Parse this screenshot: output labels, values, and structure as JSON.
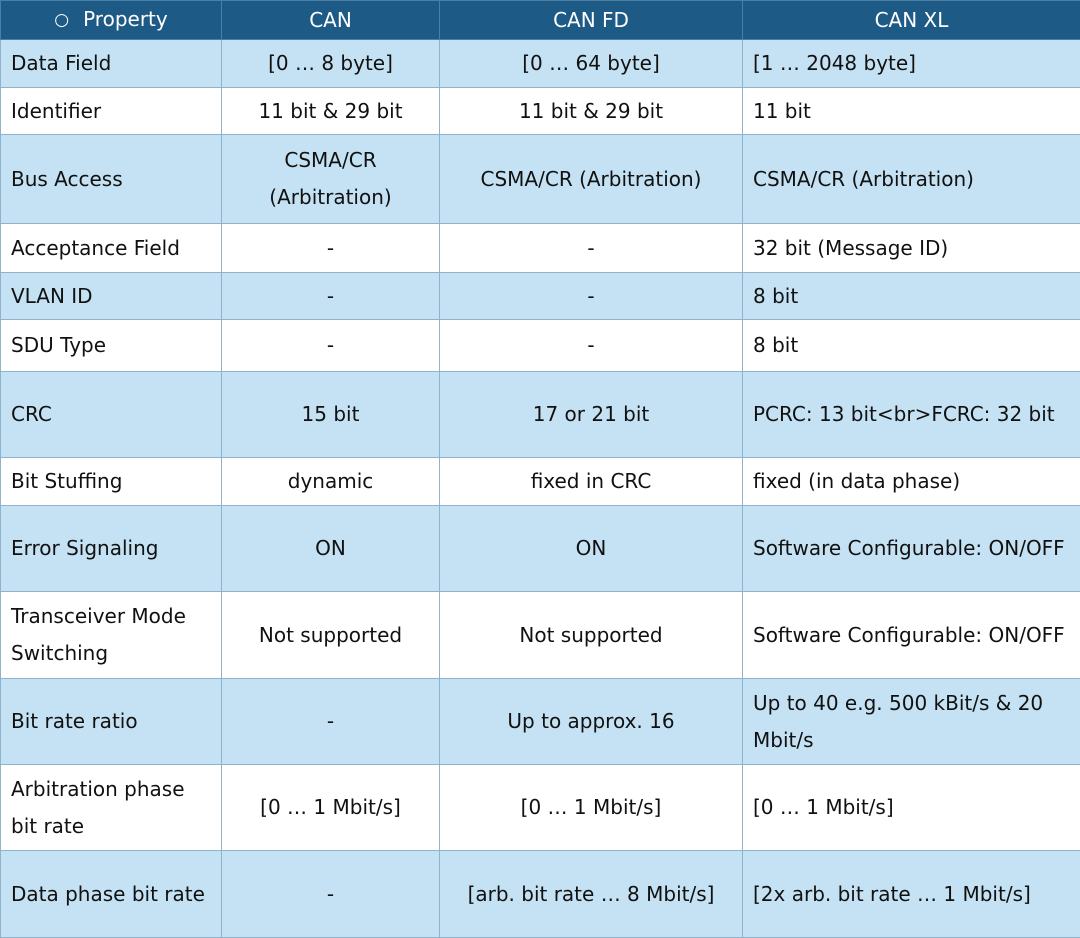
{
  "header": {
    "bullet": "○",
    "property": "Property",
    "can": "CAN",
    "canfd": "CAN FD",
    "canxl": "CAN XL"
  },
  "rows": [
    {
      "property": "Data Field",
      "can": "[0 … 8 byte]",
      "canfd": "[0 … 64 byte]",
      "canxl": "[1 … 2048 byte]"
    },
    {
      "property": "Identifier",
      "can": "11 bit & 29 bit",
      "canfd": "11 bit & 29 bit",
      "canxl": "11 bit"
    },
    {
      "property": "Bus Access",
      "can": "CSMA/CR (Arbitration)",
      "canfd": "CSMA/CR (Arbitration)",
      "canxl": "CSMA/CR (Arbitration)"
    },
    {
      "property": "Acceptance Field",
      "can": "-",
      "canfd": "-",
      "canxl": "32 bit (Message ID)"
    },
    {
      "property": "VLAN ID",
      "can": "-",
      "canfd": "-",
      "canxl": "8 bit"
    },
    {
      "property": "SDU Type",
      "can": "-",
      "canfd": "-",
      "canxl": "8 bit"
    },
    {
      "property": "CRC",
      "can": "15 bit",
      "canfd": "17 or 21 bit",
      "canxl": "PCRC: 13 bit<br>FCRC: 32 bit"
    },
    {
      "property": "Bit Stuffing",
      "can": "dynamic",
      "canfd": "fixed in CRC",
      "canxl": "fixed (in data phase)"
    },
    {
      "property": "Error Signaling",
      "can": "ON",
      "canfd": "ON",
      "canxl": "Software Configurable: ON/OFF"
    },
    {
      "property": "Transceiver Mode Switching",
      "can": "Not supported",
      "canfd": "Not supported",
      "canxl": "Software Configurable: ON/OFF"
    },
    {
      "property": "Bit rate ratio",
      "can": "-",
      "canfd": "Up to approx. 16",
      "canxl": "Up to 40 e.g. 500 kBit/s & 20 Mbit/s"
    },
    {
      "property": "Arbitration phase bit rate",
      "can": "[0 … 1 Mbit/s]",
      "canfd": "[0 … 1 Mbit/s]",
      "canxl": "[0 … 1 Mbit/s]"
    },
    {
      "property": "Data phase bit rate",
      "can": "-",
      "canfd": "[arb. bit rate … 8 Mbit/s]",
      "canxl": "[2x arb. bit rate … 1 Mbit/s]"
    }
  ]
}
